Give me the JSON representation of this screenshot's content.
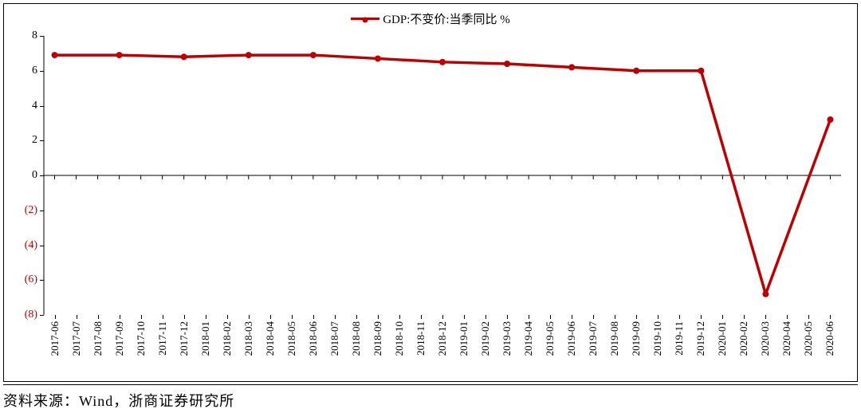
{
  "chart": {
    "type": "line",
    "legend": {
      "label": "GDP:不变价:当季同比 %",
      "position": "top-center"
    },
    "series_color": "#c00000",
    "marker_style": "circle",
    "marker_size": 8,
    "line_width": 3.5,
    "background_color": "#ffffff",
    "border_color": "#000000",
    "axis_color": "#000000",
    "negative_label_color": "#c00000",
    "positive_label_color": "#000000",
    "font": {
      "axis_fontsize": 14,
      "legend_fontsize": 15
    },
    "ylim": [
      -8,
      8
    ],
    "ytick_step": 2,
    "yticks": [
      {
        "value": 8,
        "label": "8",
        "negative": false
      },
      {
        "value": 6,
        "label": "6",
        "negative": false
      },
      {
        "value": 4,
        "label": "4",
        "negative": false
      },
      {
        "value": 2,
        "label": "2",
        "negative": false
      },
      {
        "value": 0,
        "label": "0",
        "negative": false
      },
      {
        "value": -2,
        "label": "(2)",
        "negative": true
      },
      {
        "value": -4,
        "label": "(4)",
        "negative": true
      },
      {
        "value": -6,
        "label": "(6)",
        "negative": true
      },
      {
        "value": -8,
        "label": "(8)",
        "negative": true
      }
    ],
    "categories": [
      "2017-06",
      "2017-07",
      "2017-08",
      "2017-09",
      "2017-10",
      "2017-11",
      "2017-12",
      "2018-01",
      "2018-02",
      "2018-03",
      "2018-04",
      "2018-05",
      "2018-06",
      "2018-07",
      "2018-08",
      "2018-09",
      "2018-10",
      "2018-11",
      "2018-12",
      "2019-01",
      "2019-02",
      "2019-03",
      "2019-04",
      "2019-05",
      "2019-06",
      "2019-07",
      "2019-08",
      "2019-09",
      "2019-10",
      "2019-11",
      "2019-12",
      "2020-01",
      "2020-02",
      "2020-03",
      "2020-04",
      "2020-05",
      "2020-06"
    ],
    "values": [
      6.9,
      null,
      null,
      6.9,
      null,
      null,
      6.8,
      null,
      null,
      6.9,
      null,
      null,
      6.9,
      null,
      null,
      6.7,
      null,
      null,
      6.5,
      null,
      null,
      6.4,
      null,
      null,
      6.2,
      null,
      null,
      6.0,
      null,
      null,
      6.0,
      null,
      null,
      -6.8,
      null,
      null,
      3.2
    ]
  },
  "source": {
    "label": "资料来源：Wind，浙商证券研究所"
  }
}
